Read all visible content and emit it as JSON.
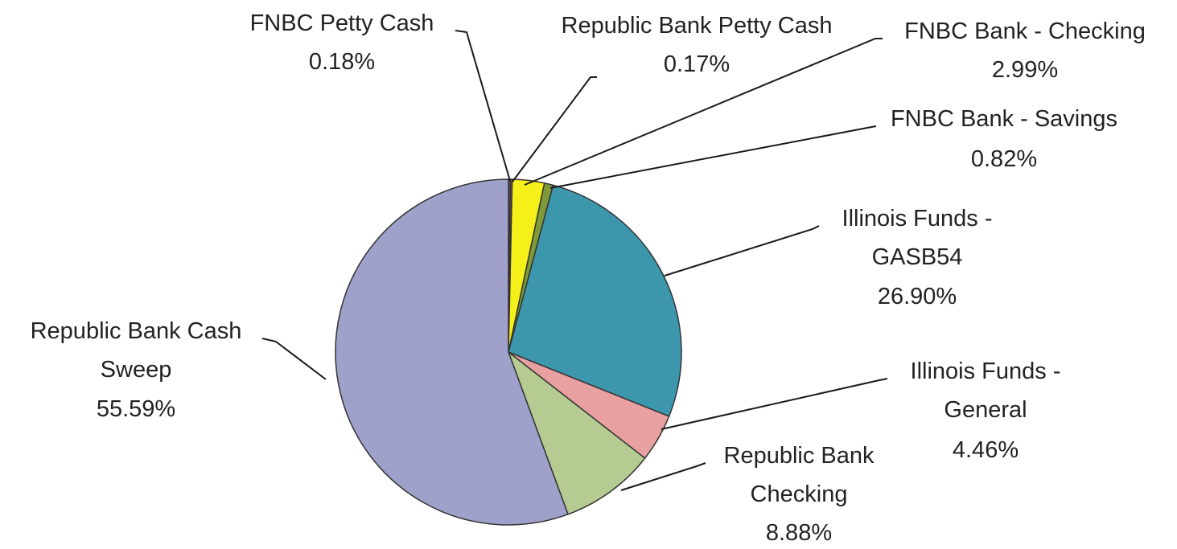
{
  "chart_data": {
    "type": "pie",
    "title": "",
    "legend": "none",
    "series": [
      {
        "values": [
          0.18,
          0.17,
          2.99,
          0.82,
          26.9,
          4.46,
          8.88,
          55.59
        ],
        "categories": [
          "FNBC Petty Cash",
          "Republic Bank Petty Cash",
          "FNBC Bank - Checking",
          "FNBC Bank - Savings",
          "Illinois Funds - GASB54",
          "Illinois Funds - General",
          "Republic Bank Checking",
          "Republic Bank Cash Sweep"
        ]
      }
    ],
    "slices": [
      {
        "name_lines": [
          "FNBC Petty Cash"
        ],
        "value_text": "0.18%",
        "value": 0.18,
        "color": "#4472c4"
      },
      {
        "name_lines": [
          "Republic Bank Petty Cash"
        ],
        "value_text": "0.17%",
        "value": 0.17,
        "color": "#c0504d"
      },
      {
        "name_lines": [
          "FNBC Bank - Checking"
        ],
        "value_text": "2.99%",
        "value": 2.99,
        "color": "#f5f019"
      },
      {
        "name_lines": [
          "FNBC Bank - Savings"
        ],
        "value_text": "0.82%",
        "value": 0.82,
        "color": "#7f9a38"
      },
      {
        "name_lines": [
          "Illinois Funds -",
          "GASB54"
        ],
        "value_text": "26.90%",
        "value": 26.9,
        "color": "#3d97ac"
      },
      {
        "name_lines": [
          "Illinois Funds -",
          "General"
        ],
        "value_text": "4.46%",
        "value": 4.46,
        "color": "#e8a0a0"
      },
      {
        "name_lines": [
          "Republic Bank",
          "Checking"
        ],
        "value_text": "8.88%",
        "value": 8.88,
        "color": "#b5cb92"
      },
      {
        "name_lines": [
          "Republic Bank Cash",
          "Sweep"
        ],
        "value_text": "55.59%",
        "value": 55.59,
        "color": "#a0a1cb"
      }
    ]
  }
}
